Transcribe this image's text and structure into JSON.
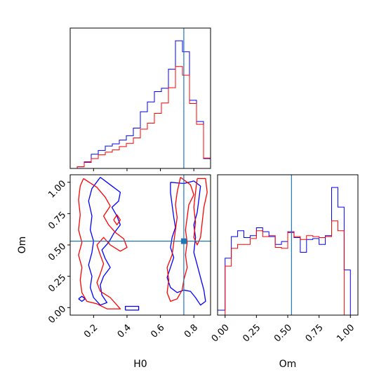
{
  "chart_data": {
    "type": "corner",
    "colors": {
      "sample_a": "#0000ff",
      "sample_b": "#ff0000",
      "truth": "#1f77b4"
    },
    "truth": {
      "H0": 0.74,
      "Om": 0.53
    },
    "panels": [
      {
        "id": "hist-H0",
        "type": "step-histogram",
        "xlim": [
          0.06,
          0.9
        ],
        "edges": [
          0.06,
          0.102,
          0.144,
          0.186,
          0.228,
          0.27,
          0.312,
          0.354,
          0.396,
          0.438,
          0.48,
          0.522,
          0.564,
          0.606,
          0.648,
          0.69,
          0.732,
          0.774,
          0.816,
          0.858,
          0.9
        ],
        "series": [
          {
            "color_key": "sample_a",
            "counts": [
              0,
              0.3,
              1.2,
              2.6,
              3.3,
              4.1,
              4.5,
              5.2,
              6.0,
              7.4,
              10.4,
              12.2,
              14.1,
              14.7,
              18.2,
              23.4,
              21.4,
              12.5,
              8.6,
              1.8
            ]
          },
          {
            "color_key": "sample_b",
            "counts": [
              0,
              0.3,
              1.1,
              1.8,
              2.5,
              3.0,
              3.4,
              4.0,
              4.6,
              5.6,
              7.2,
              8.3,
              10.1,
              12.0,
              14.8,
              18.7,
              17.1,
              11.9,
              8.1,
              1.9
            ]
          }
        ],
        "truth_x": 0.74
      },
      {
        "id": "contour-H0-Om",
        "type": "contour",
        "xlabel": "H0",
        "ylabel": "Om",
        "xlim": [
          0.06,
          0.9
        ],
        "ylim": [
          -0.06,
          1.06
        ],
        "xticks": [
          "0.2",
          "0.4",
          "0.6",
          "0.8"
        ],
        "yticks": [
          "0.00",
          "0.25",
          "0.50",
          "0.75",
          "1.00"
        ],
        "xtick_values": [
          0.2,
          0.4,
          0.6,
          0.8
        ],
        "ytick_values": [
          0,
          0.25,
          0.5,
          0.75,
          1.0
        ],
        "truth_point": [
          0.74,
          0.53
        ],
        "contours": [
          {
            "color_key": "sample_a",
            "points": [
              [
                0.24,
                1.04
              ],
              [
                0.3,
                0.98
              ],
              [
                0.36,
                0.92
              ],
              [
                0.35,
                0.85
              ],
              [
                0.31,
                0.8
              ],
              [
                0.34,
                0.73
              ],
              [
                0.36,
                0.66
              ],
              [
                0.32,
                0.59
              ],
              [
                0.29,
                0.52
              ],
              [
                0.25,
                0.46
              ],
              [
                0.27,
                0.39
              ],
              [
                0.3,
                0.32
              ],
              [
                0.26,
                0.25
              ],
              [
                0.24,
                0.18
              ],
              [
                0.25,
                0.1
              ],
              [
                0.28,
                0.04
              ],
              [
                0.24,
                0.02
              ],
              [
                0.2,
                0.08
              ],
              [
                0.18,
                0.16
              ],
              [
                0.19,
                0.25
              ],
              [
                0.17,
                0.34
              ],
              [
                0.19,
                0.44
              ],
              [
                0.2,
                0.53
              ],
              [
                0.18,
                0.62
              ],
              [
                0.19,
                0.73
              ],
              [
                0.17,
                0.85
              ],
              [
                0.19,
                0.95
              ],
              [
                0.24,
                1.04
              ]
            ]
          },
          {
            "color_key": "sample_a",
            "points": [
              [
                0.66,
                1.0
              ],
              [
                0.74,
                0.99
              ],
              [
                0.8,
                1.01
              ],
              [
                0.84,
                0.97
              ],
              [
                0.83,
                0.86
              ],
              [
                0.82,
                0.76
              ],
              [
                0.8,
                0.66
              ],
              [
                0.81,
                0.56
              ],
              [
                0.8,
                0.44
              ],
              [
                0.82,
                0.34
              ],
              [
                0.84,
                0.24
              ],
              [
                0.86,
                0.14
              ],
              [
                0.87,
                0.05
              ],
              [
                0.84,
                0.02
              ],
              [
                0.81,
                0.08
              ],
              [
                0.78,
                0.13
              ],
              [
                0.74,
                0.14
              ],
              [
                0.7,
                0.12
              ],
              [
                0.66,
                0.16
              ],
              [
                0.64,
                0.24
              ],
              [
                0.66,
                0.32
              ],
              [
                0.68,
                0.4
              ],
              [
                0.66,
                0.48
              ],
              [
                0.67,
                0.56
              ],
              [
                0.69,
                0.64
              ],
              [
                0.68,
                0.72
              ],
              [
                0.67,
                0.82
              ],
              [
                0.66,
                0.92
              ],
              [
                0.66,
                1.0
              ]
            ]
          },
          {
            "color_key": "sample_a",
            "points": [
              [
                0.11,
                0.07
              ],
              [
                0.13,
                0.05
              ],
              [
                0.15,
                0.07
              ],
              [
                0.13,
                0.09
              ],
              [
                0.11,
                0.07
              ]
            ]
          },
          {
            "color_key": "sample_a",
            "points": [
              [
                0.39,
                -0.02
              ],
              [
                0.47,
                -0.02
              ],
              [
                0.47,
                0.01
              ],
              [
                0.39,
                0.01
              ],
              [
                0.39,
                -0.02
              ]
            ]
          },
          {
            "color_key": "sample_b",
            "points": [
              [
                0.14,
                1.03
              ],
              [
                0.22,
                0.96
              ],
              [
                0.27,
                0.88
              ],
              [
                0.3,
                0.81
              ],
              [
                0.26,
                0.73
              ],
              [
                0.29,
                0.66
              ],
              [
                0.33,
                0.6
              ],
              [
                0.38,
                0.55
              ],
              [
                0.4,
                0.48
              ],
              [
                0.36,
                0.45
              ],
              [
                0.3,
                0.5
              ],
              [
                0.26,
                0.56
              ],
              [
                0.22,
                0.5
              ],
              [
                0.24,
                0.42
              ],
              [
                0.26,
                0.35
              ],
              [
                0.24,
                0.27
              ],
              [
                0.22,
                0.2
              ],
              [
                0.24,
                0.13
              ],
              [
                0.3,
                0.08
              ],
              [
                0.36,
                -0.01
              ],
              [
                0.28,
                -0.01
              ],
              [
                0.22,
                0.03
              ],
              [
                0.16,
                0.05
              ],
              [
                0.13,
                0.12
              ],
              [
                0.12,
                0.22
              ],
              [
                0.13,
                0.32
              ],
              [
                0.11,
                0.42
              ],
              [
                0.13,
                0.52
              ],
              [
                0.11,
                0.62
              ],
              [
                0.12,
                0.74
              ],
              [
                0.11,
                0.86
              ],
              [
                0.12,
                0.97
              ],
              [
                0.14,
                1.03
              ]
            ]
          },
          {
            "color_key": "sample_b",
            "points": [
              [
                0.72,
                1.04
              ],
              [
                0.78,
                0.98
              ],
              [
                0.8,
                0.9
              ],
              [
                0.77,
                0.82
              ],
              [
                0.76,
                0.72
              ],
              [
                0.75,
                0.62
              ],
              [
                0.76,
                0.52
              ],
              [
                0.75,
                0.42
              ],
              [
                0.76,
                0.32
              ],
              [
                0.74,
                0.22
              ],
              [
                0.73,
                0.14
              ],
              [
                0.7,
                0.07
              ],
              [
                0.66,
                0.05
              ],
              [
                0.64,
                0.12
              ],
              [
                0.65,
                0.22
              ],
              [
                0.64,
                0.32
              ],
              [
                0.67,
                0.42
              ],
              [
                0.68,
                0.52
              ],
              [
                0.69,
                0.62
              ],
              [
                0.7,
                0.72
              ],
              [
                0.69,
                0.82
              ],
              [
                0.7,
                0.92
              ],
              [
                0.72,
                1.04
              ]
            ]
          },
          {
            "color_key": "sample_b",
            "points": [
              [
                0.82,
                1.03
              ],
              [
                0.87,
                1.03
              ],
              [
                0.88,
                0.92
              ],
              [
                0.86,
                0.8
              ],
              [
                0.85,
                0.68
              ],
              [
                0.84,
                0.56
              ],
              [
                0.82,
                0.5
              ],
              [
                0.8,
                0.56
              ],
              [
                0.81,
                0.68
              ],
              [
                0.8,
                0.8
              ],
              [
                0.81,
                0.92
              ],
              [
                0.82,
                1.03
              ]
            ]
          },
          {
            "color_key": "sample_b",
            "points": [
              [
                0.32,
                0.7
              ],
              [
                0.34,
                0.66
              ],
              [
                0.36,
                0.7
              ],
              [
                0.34,
                0.74
              ],
              [
                0.32,
                0.7
              ]
            ]
          }
        ]
      },
      {
        "id": "hist-Om",
        "type": "step-histogram",
        "xlabel": "Om",
        "xlim": [
          -0.06,
          1.06
        ],
        "xticks": [
          "0.00",
          "0.25",
          "0.50",
          "0.75",
          "1.00"
        ],
        "xtick_values": [
          0,
          0.25,
          0.5,
          0.75,
          1.0
        ],
        "edges": [
          -0.06,
          0.0,
          0.05,
          0.1,
          0.15,
          0.2,
          0.25,
          0.3,
          0.35,
          0.4,
          0.45,
          0.5,
          0.55,
          0.6,
          0.65,
          0.7,
          0.75,
          0.8,
          0.85,
          0.9,
          0.95,
          1.0,
          1.06
        ],
        "series": [
          {
            "color_key": "sample_a",
            "counts": [
              0.5,
              5.8,
              8.0,
              8.6,
              7.9,
              8.1,
              8.9,
              8.5,
              8.0,
              7.2,
              7.5,
              8.5,
              7.9,
              6.4,
              7.7,
              7.8,
              7.2,
              8.1,
              13.0,
              11.0,
              4.6,
              0
            ],
            "note": ""
          },
          {
            "color_key": "sample_b",
            "counts": [
              0,
              5.0,
              6.8,
              7.2,
              7.2,
              7.8,
              8.6,
              8.0,
              8.1,
              6.9,
              6.8,
              8.4,
              8.0,
              7.7,
              8.1,
              8.0,
              7.9,
              8.0,
              9.6,
              8.6,
              0,
              0
            ]
          }
        ],
        "truth_x": 0.53
      }
    ]
  }
}
